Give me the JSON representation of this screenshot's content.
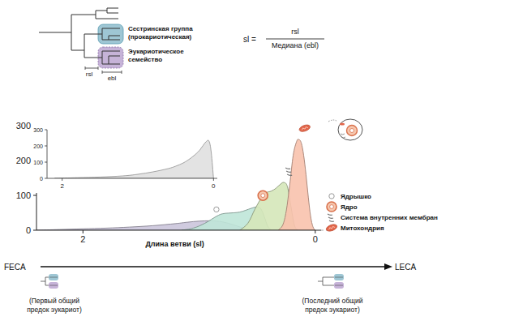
{
  "chart_data": [
    {
      "type": "area",
      "x_label": "Длина ветви (sl)",
      "xlim": [
        2.4,
        -0.05
      ],
      "xticks": [
        2,
        0
      ],
      "ylim": [
        0,
        300
      ],
      "yticks": [
        0,
        100,
        200,
        300
      ],
      "legend": "right",
      "series": [
        {
          "name": "Ядрышко",
          "color": "#cbc5dc",
          "marker": "nucleolus",
          "x": [
            2.4,
            2.2,
            2.0,
            1.8,
            1.6,
            1.4,
            1.2,
            1.1,
            1.0,
            0.9,
            0.8,
            0.7,
            0.6,
            0.55
          ],
          "values": [
            0,
            2,
            4,
            6,
            9,
            13,
            19,
            23,
            26,
            27,
            24,
            15,
            4,
            0
          ]
        },
        {
          "name": "Ядро",
          "color": "#bfe5d8",
          "marker": "nucleus",
          "x": [
            1.15,
            1.05,
            0.95,
            0.85,
            0.8,
            0.75,
            0.7,
            0.65,
            0.6,
            0.55,
            0.5,
            0.47,
            0.44,
            0.41,
            0.38
          ],
          "values": [
            0,
            6,
            20,
            40,
            47,
            49,
            50,
            52,
            57,
            63,
            67,
            62,
            40,
            12,
            0
          ]
        },
        {
          "name": "Система внутренних мембран",
          "color": "#d5e7b9",
          "marker": "membrane",
          "x": [
            0.65,
            0.58,
            0.52,
            0.46,
            0.42,
            0.38,
            0.34,
            0.3,
            0.27,
            0.24,
            0.21,
            0.18,
            0.15
          ],
          "values": [
            0,
            20,
            60,
            95,
            108,
            112,
            120,
            132,
            137,
            125,
            70,
            15,
            0
          ]
        },
        {
          "name": "Митохондрия",
          "color": "#f8c2ad",
          "marker": "mitochondrion",
          "x": [
            0.32,
            0.28,
            0.25,
            0.22,
            0.19,
            0.16,
            0.14,
            0.12,
            0.1,
            0.08,
            0.06,
            0.04,
            0.02,
            0.0
          ],
          "values": [
            0,
            15,
            55,
            130,
            215,
            255,
            260,
            250,
            215,
            160,
            95,
            40,
            10,
            0
          ]
        }
      ]
    },
    {
      "type": "area",
      "xlim": [
        2.2,
        -0.05
      ],
      "xticks": [
        2,
        0
      ],
      "ylim": [
        0,
        300
      ],
      "yticks": [
        0,
        100,
        200,
        300
      ],
      "series": [
        {
          "color": "#e3e3e3",
          "x": [
            2.1,
            1.8,
            1.5,
            1.2,
            1.0,
            0.8,
            0.6,
            0.5,
            0.4,
            0.3,
            0.2,
            0.15,
            0.1,
            0.06,
            0.03,
            0.0
          ],
          "values": [
            0,
            4,
            8,
            15,
            25,
            40,
            60,
            75,
            95,
            125,
            165,
            195,
            225,
            230,
            160,
            0
          ]
        }
      ]
    }
  ],
  "diagram": {
    "sister_group": [
      "Сестринская группа",
      "(прокариотическая)"
    ],
    "eukaryotic_family": [
      "Эукариотическое",
      "семейство"
    ],
    "rsl": "rsl",
    "ebl": "ebl",
    "formula": {
      "lhs": "sl =",
      "numerator": "rsl",
      "denominator": "Медиана (ebl)"
    }
  },
  "timeline": {
    "start": "FECA",
    "end": "LECA",
    "start_caption": [
      "(Первый общий",
      "предок эукариот)"
    ],
    "end_caption": [
      "(Последний общий",
      "предок эукариот)"
    ]
  }
}
